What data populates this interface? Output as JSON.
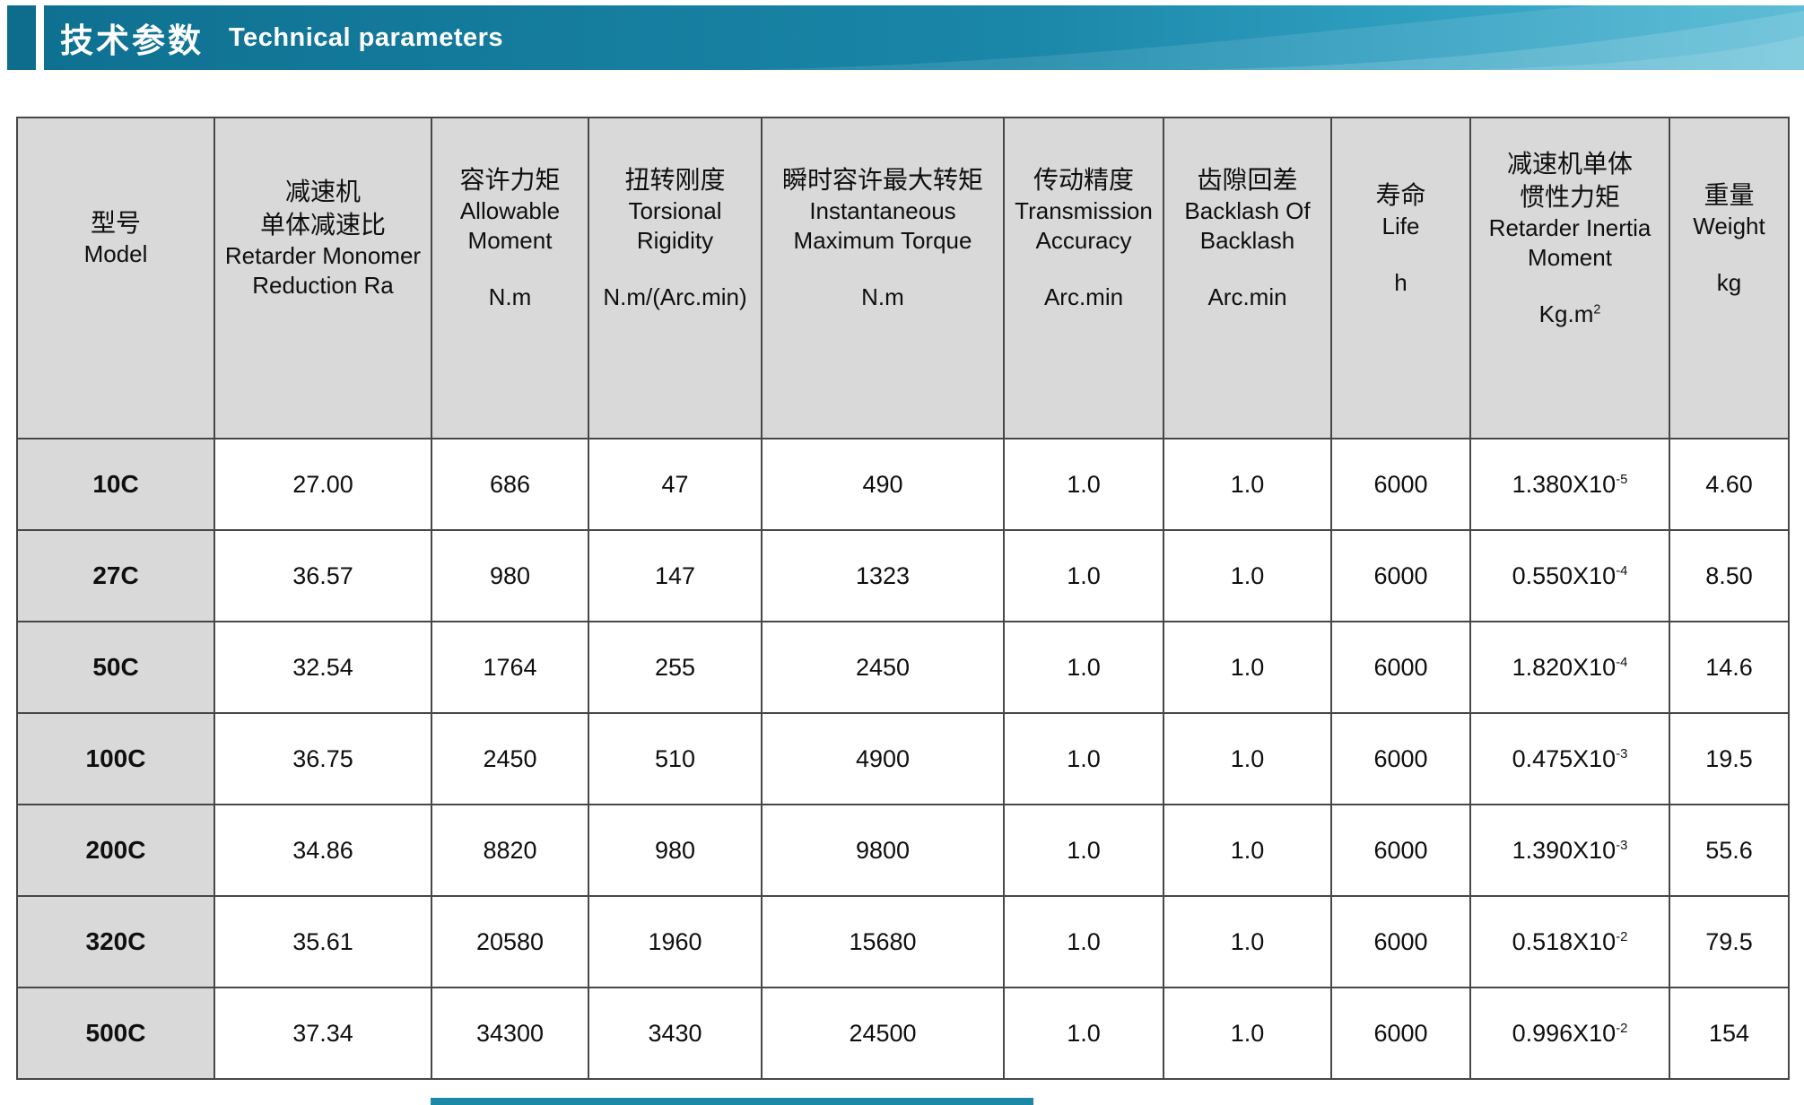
{
  "header": {
    "title_zh": "技术参数",
    "title_en": "Technical parameters"
  },
  "colors": {
    "banner_dark": "#0e6d8c",
    "banner_mid": "#1a86a8",
    "banner_light": "#4cb6d2",
    "header_gray": "#d9d9d9",
    "accent": "#1d87a8",
    "border": "#474747"
  },
  "table": {
    "columns": [
      {
        "key": "model",
        "zh": [
          "型号"
        ],
        "en": [
          "Model"
        ],
        "unit": ""
      },
      {
        "key": "reduction_ratio",
        "zh": [
          "减速机",
          "单体减速比"
        ],
        "en": [
          "Retarder Monomer",
          "Reduction Ra"
        ],
        "unit": ""
      },
      {
        "key": "allowable_moment",
        "zh": [
          "容许力矩"
        ],
        "en": [
          "Allowable",
          "Moment"
        ],
        "unit": "N.m"
      },
      {
        "key": "torsional_rigidity",
        "zh": [
          "扭转刚度"
        ],
        "en": [
          "Torsional",
          "Rigidity"
        ],
        "unit": "N.m/(Arc.min)"
      },
      {
        "key": "max_torque",
        "zh": [
          "瞬时容许最大转矩"
        ],
        "en": [
          "Instantaneous",
          "Maximum Torque"
        ],
        "unit": "N.m"
      },
      {
        "key": "transmission_accuracy",
        "zh": [
          "传动精度"
        ],
        "en": [
          "Transmission",
          "Accuracy"
        ],
        "unit": "Arc.min"
      },
      {
        "key": "backlash",
        "zh": [
          "齿隙回差"
        ],
        "en": [
          "Backlash Of",
          "Backlash"
        ],
        "unit": "Arc.min"
      },
      {
        "key": "life",
        "zh": [
          "寿命"
        ],
        "en": [
          "Life"
        ],
        "unit": "h"
      },
      {
        "key": "inertia",
        "zh": [
          "减速机单体",
          "惯性力矩"
        ],
        "en": [
          "Retarder Inertia",
          "Moment"
        ],
        "unit": "Kg.m^2"
      },
      {
        "key": "weight",
        "zh": [
          "重量"
        ],
        "en": [
          "Weight"
        ],
        "unit": "kg"
      }
    ],
    "rows": [
      {
        "model": "10C",
        "reduction_ratio": "27.00",
        "allowable_moment": "686",
        "torsional_rigidity": "47",
        "max_torque": "490",
        "transmission_accuracy": "1.0",
        "backlash": "1.0",
        "life": "6000",
        "inertia": "1.380X10^-5",
        "weight": "4.60"
      },
      {
        "model": "27C",
        "reduction_ratio": "36.57",
        "allowable_moment": "980",
        "torsional_rigidity": "147",
        "max_torque": "1323",
        "transmission_accuracy": "1.0",
        "backlash": "1.0",
        "life": "6000",
        "inertia": "0.550X10^-4",
        "weight": "8.50"
      },
      {
        "model": "50C",
        "reduction_ratio": "32.54",
        "allowable_moment": "1764",
        "torsional_rigidity": "255",
        "max_torque": "2450",
        "transmission_accuracy": "1.0",
        "backlash": "1.0",
        "life": "6000",
        "inertia": "1.820X10^-4",
        "weight": "14.6"
      },
      {
        "model": "100C",
        "reduction_ratio": "36.75",
        "allowable_moment": "2450",
        "torsional_rigidity": "510",
        "max_torque": "4900",
        "transmission_accuracy": "1.0",
        "backlash": "1.0",
        "life": "6000",
        "inertia": "0.475X10^-3",
        "weight": "19.5"
      },
      {
        "model": "200C",
        "reduction_ratio": "34.86",
        "allowable_moment": "8820",
        "torsional_rigidity": "980",
        "max_torque": "9800",
        "transmission_accuracy": "1.0",
        "backlash": "1.0",
        "life": "6000",
        "inertia": "1.390X10^-3",
        "weight": "55.6"
      },
      {
        "model": "320C",
        "reduction_ratio": "35.61",
        "allowable_moment": "20580",
        "torsional_rigidity": "1960",
        "max_torque": "15680",
        "transmission_accuracy": "1.0",
        "backlash": "1.0",
        "life": "6000",
        "inertia": "0.518X10^-2",
        "weight": "79.5"
      },
      {
        "model": "500C",
        "reduction_ratio": "37.34",
        "allowable_moment": "34300",
        "torsional_rigidity": "3430",
        "max_torque": "24500",
        "transmission_accuracy": "1.0",
        "backlash": "1.0",
        "life": "6000",
        "inertia": "0.996X10^-2",
        "weight": "154"
      }
    ]
  }
}
